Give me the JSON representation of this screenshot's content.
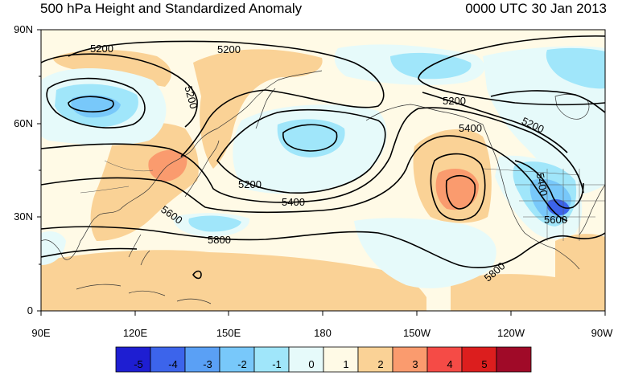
{
  "title_left": "500 hPa Height and Standardized Anomaly",
  "title_right": "0000 UTC 30 Jan 2013",
  "lat_labels": [
    "90N",
    "60N",
    "30N",
    "0"
  ],
  "lon_labels": [
    "90E",
    "120E",
    "150E",
    "180",
    "150W",
    "120W",
    "90W"
  ],
  "contour_labels": [
    "5200",
    "5200",
    "5200",
    "5200",
    "5200",
    "5200",
    "5400",
    "5400",
    "5400",
    "5600",
    "5600",
    "5800",
    "5800"
  ],
  "colorbar": {
    "labels": [
      "-5",
      "-4",
      "-3",
      "-2",
      "-1",
      "0",
      "1",
      "2",
      "3",
      "4",
      "5"
    ],
    "colors": [
      "#1e1ed2",
      "#3c64eb",
      "#5aa0f5",
      "#78c8fa",
      "#a0e6fa",
      "#e6fafa",
      "#fffae6",
      "#fad296",
      "#fa9b6e",
      "#f54b46",
      "#dc1e1e",
      "#a00a28"
    ]
  },
  "colors": {
    "neutral_background": "#fffae6",
    "positive_light": "#fad296",
    "positive_medium": "#fa9b6e",
    "negative_light": "#e6fafa",
    "negative_medium": "#a0e6fa",
    "negative_strong": "#78c8fa",
    "negative_deep": "#3c64eb",
    "contour_color": "#000000"
  }
}
